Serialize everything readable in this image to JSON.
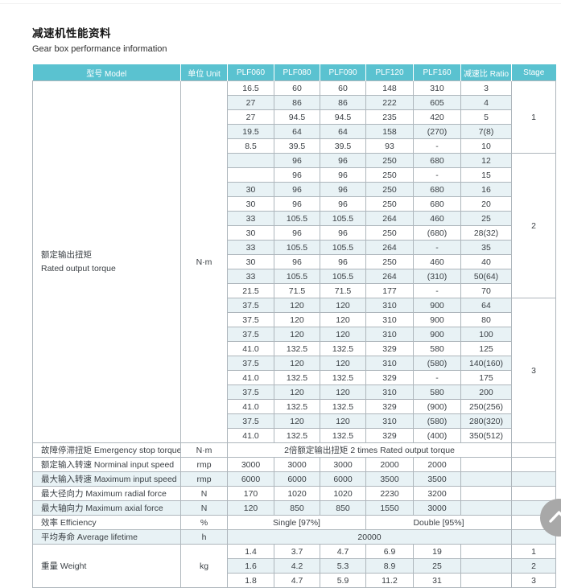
{
  "page": {
    "title_zh": "减速机性能资料",
    "subtitle_en": "Gear box performance information"
  },
  "colors": {
    "header_bg": "#5ac2d0",
    "row_stripe": "#e8f2f5",
    "border": "#aeb6bc",
    "fab_gray": "#a8a8a8"
  },
  "table": {
    "headers": [
      "型号 Model",
      "单位 Unit",
      "PLF060",
      "PLF080",
      "PLF090",
      "PLF120",
      "PLF160",
      "减速比 Ratio",
      "Stage"
    ],
    "torque": {
      "label_zh": "额定输出扭矩",
      "label_en": "Rated output torque",
      "unit": "N·m",
      "groups": [
        {
          "stage": "1",
          "rows": [
            {
              "values": [
                "16.5",
                "60",
                "60",
                "148",
                "310"
              ],
              "ratio": "3"
            },
            {
              "values": [
                "27",
                "86",
                "86",
                "222",
                "605"
              ],
              "ratio": "4"
            },
            {
              "values": [
                "27",
                "94.5",
                "94.5",
                "235",
                "420"
              ],
              "ratio": "5"
            },
            {
              "values": [
                "19.5",
                "64",
                "64",
                "158",
                "(270)"
              ],
              "ratio": "7(8)"
            },
            {
              "values": [
                "8.5",
                "39.5",
                "39.5",
                "93",
                "-"
              ],
              "ratio": "10"
            }
          ]
        },
        {
          "stage": "2",
          "rows": [
            {
              "values": [
                "",
                "96",
                "96",
                "250",
                "680"
              ],
              "ratio": "12"
            },
            {
              "values": [
                "",
                "96",
                "96",
                "250",
                "-"
              ],
              "ratio": "15"
            },
            {
              "values": [
                "30",
                "96",
                "96",
                "250",
                "680"
              ],
              "ratio": "16"
            },
            {
              "values": [
                "30",
                "96",
                "96",
                "250",
                "680"
              ],
              "ratio": "20"
            },
            {
              "values": [
                "33",
                "105.5",
                "105.5",
                "264",
                "460"
              ],
              "ratio": "25"
            },
            {
              "values": [
                "30",
                "96",
                "96",
                "250",
                "(680)"
              ],
              "ratio": "28(32)"
            },
            {
              "values": [
                "33",
                "105.5",
                "105.5",
                "264",
                "-"
              ],
              "ratio": "35"
            },
            {
              "values": [
                "30",
                "96",
                "96",
                "250",
                "460"
              ],
              "ratio": "40"
            },
            {
              "values": [
                "33",
                "105.5",
                "105.5",
                "264",
                "(310)"
              ],
              "ratio": "50(64)"
            },
            {
              "values": [
                "21.5",
                "71.5",
                "71.5",
                "177",
                "-"
              ],
              "ratio": "70"
            }
          ]
        },
        {
          "stage": "3",
          "rows": [
            {
              "values": [
                "37.5",
                "120",
                "120",
                "310",
                "900"
              ],
              "ratio": "64"
            },
            {
              "values": [
                "37.5",
                "120",
                "120",
                "310",
                "900"
              ],
              "ratio": "80"
            },
            {
              "values": [
                "37.5",
                "120",
                "120",
                "310",
                "900"
              ],
              "ratio": "100"
            },
            {
              "values": [
                "41.0",
                "132.5",
                "132.5",
                "329",
                "580"
              ],
              "ratio": "125"
            },
            {
              "values": [
                "37.5",
                "120",
                "120",
                "310",
                "(580)"
              ],
              "ratio": "140(160)"
            },
            {
              "values": [
                "41.0",
                "132.5",
                "132.5",
                "329",
                "-"
              ],
              "ratio": "175"
            },
            {
              "values": [
                "37.5",
                "120",
                "120",
                "310",
                "580"
              ],
              "ratio": "200"
            },
            {
              "values": [
                "41.0",
                "132.5",
                "132.5",
                "329",
                "(900)"
              ],
              "ratio": "250(256)"
            },
            {
              "values": [
                "37.5",
                "120",
                "120",
                "310",
                "(580)"
              ],
              "ratio": "280(320)"
            },
            {
              "values": [
                "41.0",
                "132.5",
                "132.5",
                "329",
                "(400)"
              ],
              "ratio": "350(512)"
            }
          ]
        }
      ]
    },
    "rows": [
      {
        "label": "故障停滞扭矩 Emergency stop torque",
        "unit": "N·m",
        "span": "2倍额定输出扭矩  2 times Rated output torque"
      },
      {
        "label": "额定输入转速 Norminal input speed",
        "unit": "rmp",
        "values": [
          "3000",
          "3000",
          "3000",
          "2000",
          "2000"
        ]
      },
      {
        "label": "最大输入转速 Maximum input speed",
        "unit": "rmp",
        "values": [
          "6000",
          "6000",
          "6000",
          "3500",
          "3500"
        ]
      },
      {
        "label": "最大径向力 Maximum radial force",
        "unit": "N",
        "values": [
          "170",
          "1020",
          "1020",
          "2230",
          "3200"
        ]
      },
      {
        "label": "最大轴向力 Maximum axial force",
        "unit": "N",
        "values": [
          "120",
          "850",
          "850",
          "1550",
          "3000"
        ]
      },
      {
        "label": "效率 Efficiency",
        "unit": "%",
        "split": [
          "Single [97%]",
          "Double [95%]"
        ]
      },
      {
        "label": "平均寿命 Average lifetime",
        "unit": "h",
        "span": "20000"
      }
    ],
    "weight": {
      "label": "重量 Weight",
      "unit": "kg",
      "rows": [
        {
          "values": [
            "1.4",
            "3.7",
            "4.7",
            "6.9",
            "19"
          ],
          "stage": "1"
        },
        {
          "values": [
            "1.6",
            "4.2",
            "5.3",
            "8.9",
            "25"
          ],
          "stage": "2"
        },
        {
          "values": [
            "1.8",
            "4.7",
            "5.9",
            "11.2",
            "31"
          ],
          "stage": "3"
        }
      ]
    }
  },
  "fab": {
    "icon": "chevron-up"
  }
}
